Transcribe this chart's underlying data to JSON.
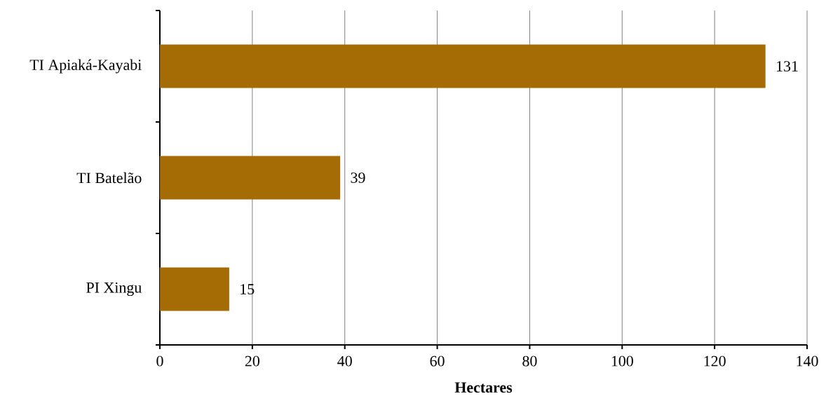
{
  "chart_data": {
    "type": "bar",
    "orientation": "horizontal",
    "categories": [
      "TI Apiaká-Kayabi",
      "TI Batelão",
      "PI Xingu"
    ],
    "values": [
      131,
      39,
      15
    ],
    "color": "#a56c06",
    "xlabel": "Hectares",
    "xlim": [
      0,
      140
    ],
    "xticks": [
      0,
      20,
      40,
      60,
      80,
      100,
      120,
      140
    ],
    "grid": "x",
    "data_labels": true
  }
}
